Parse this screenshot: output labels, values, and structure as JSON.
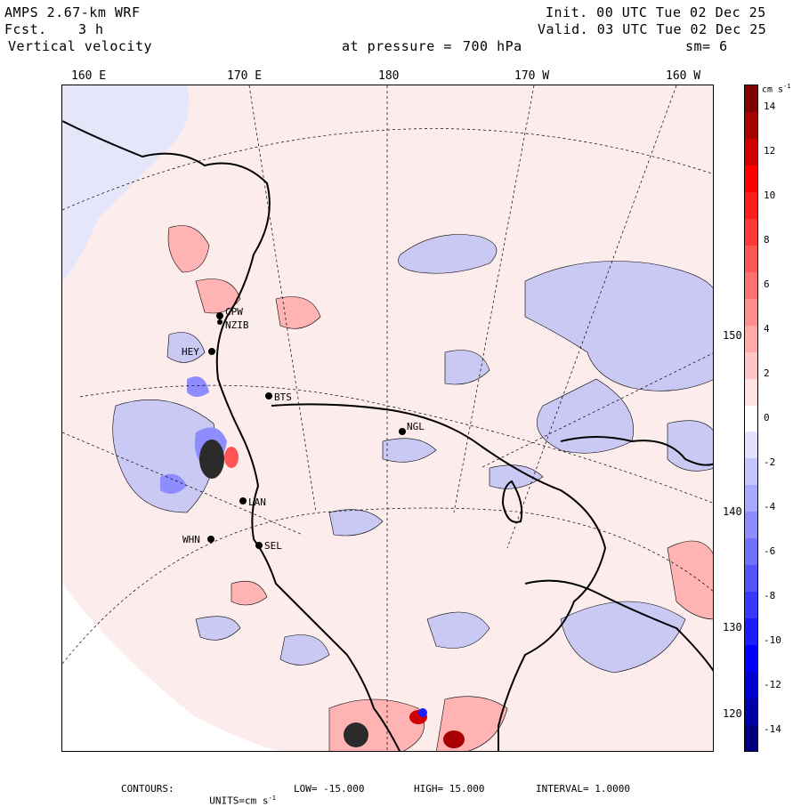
{
  "header": {
    "model": "AMPS 2.67-km WRF",
    "fcst_label": "Fcst.",
    "fcst_value": "3 h",
    "field": "Vertical velocity",
    "pressure_label": "at pressure =",
    "pressure_value": "700 hPa",
    "init": "Init. 00 UTC Tue 02 Dec 25",
    "valid": "Valid. 03 UTC Tue 02 Dec 25",
    "smooth": "sm= 6"
  },
  "longitude_labels": [
    "160 E",
    "170 E",
    "180",
    "170 W",
    "160 W"
  ],
  "latitude_labels": [
    "150 W",
    "140 W",
    "130 W",
    "120 W"
  ],
  "stations": [
    "CPW",
    "NZIB",
    "HEY",
    "BTS",
    "NGL",
    "LAN",
    "WHN",
    "SEL"
  ],
  "colorbar": {
    "unit": "cm s",
    "unit_exp": "-1",
    "min": -15,
    "max": 15,
    "tick_labels": [
      "14",
      "12",
      "10",
      "8",
      "6",
      "4",
      "2",
      "0",
      "-2",
      "-4",
      "-6",
      "-8",
      "-10",
      "-12",
      "-14"
    ],
    "colors": [
      "#00007f",
      "#0000a8",
      "#0000d0",
      "#0000ff",
      "#1c1cff",
      "#3838ff",
      "#5555ff",
      "#7171ff",
      "#8d8dff",
      "#a9a9ff",
      "#c5c5ff",
      "#e2e2ff",
      "#ffffff",
      "#ffe2e2",
      "#ffc5c5",
      "#ffa9a9",
      "#ff8d8d",
      "#ff7171",
      "#ff5555",
      "#ff3838",
      "#ff1c1c",
      "#ff0000",
      "#d00000",
      "#a80000",
      "#7f0000"
    ]
  },
  "footer": {
    "contours": "CONTOURS:",
    "units_label": "UNITS=cm s",
    "units_exp": "-1",
    "low": "LOW= -15.000",
    "high": "HIGH= 15.000",
    "interval": "INTERVAL= 1.0000"
  }
}
